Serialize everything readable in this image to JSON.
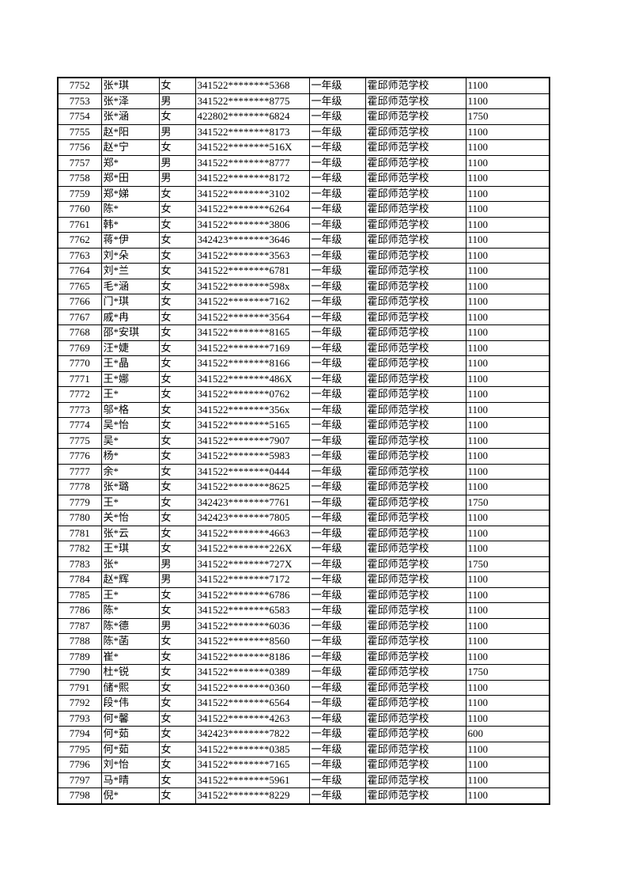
{
  "table": {
    "rows": [
      [
        "7752",
        "张*琪",
        "女",
        "341522********5368",
        "一年级",
        "霍邱师范学校",
        "1100"
      ],
      [
        "7753",
        "张*泽",
        "男",
        "341522********8775",
        "一年级",
        "霍邱师范学校",
        "1100"
      ],
      [
        "7754",
        "张*涵",
        "女",
        "422802********6824",
        "一年级",
        "霍邱师范学校",
        "1750"
      ],
      [
        "7755",
        "赵*阳",
        "男",
        "341522********8173",
        "一年级",
        "霍邱师范学校",
        "1100"
      ],
      [
        "7756",
        "赵*宁",
        "女",
        "341522********516X",
        "一年级",
        "霍邱师范学校",
        "1100"
      ],
      [
        "7757",
        "郑*",
        "男",
        "341522********8777",
        "一年级",
        "霍邱师范学校",
        "1100"
      ],
      [
        "7758",
        "郑*田",
        "男",
        "341522********8172",
        "一年级",
        "霍邱师范学校",
        "1100"
      ],
      [
        "7759",
        "郑*娣",
        "女",
        "341522********3102",
        "一年级",
        "霍邱师范学校",
        "1100"
      ],
      [
        "7760",
        "陈*",
        "女",
        "341522********6264",
        "一年级",
        "霍邱师范学校",
        "1100"
      ],
      [
        "7761",
        "韩*",
        "女",
        "341522********3806",
        "一年级",
        "霍邱师范学校",
        "1100"
      ],
      [
        "7762",
        "蒋*伊",
        "女",
        "342423********3646",
        "一年级",
        "霍邱师范学校",
        "1100"
      ],
      [
        "7763",
        "刘*朵",
        "女",
        "341522********3563",
        "一年级",
        "霍邱师范学校",
        "1100"
      ],
      [
        "7764",
        "刘*兰",
        "女",
        "341522********6781",
        "一年级",
        "霍邱师范学校",
        "1100"
      ],
      [
        "7765",
        "毛*涵",
        "女",
        "341522********598x",
        "一年级",
        "霍邱师范学校",
        "1100"
      ],
      [
        "7766",
        "门*琪",
        "女",
        "341522********7162",
        "一年级",
        "霍邱师范学校",
        "1100"
      ],
      [
        "7767",
        "戚*冉",
        "女",
        "341522********3564",
        "一年级",
        "霍邱师范学校",
        "1100"
      ],
      [
        "7768",
        "邵*安琪",
        "女",
        "341522********8165",
        "一年级",
        "霍邱师范学校",
        "1100"
      ],
      [
        "7769",
        "汪*婕",
        "女",
        "341522********7169",
        "一年级",
        "霍邱师范学校",
        "1100"
      ],
      [
        "7770",
        "王*晶",
        "女",
        "341522********8166",
        "一年级",
        "霍邱师范学校",
        "1100"
      ],
      [
        "7771",
        "王*娜",
        "女",
        "341522********486X",
        "一年级",
        "霍邱师范学校",
        "1100"
      ],
      [
        "7772",
        "王*",
        "女",
        "341522********0762",
        "一年级",
        "霍邱师范学校",
        "1100"
      ],
      [
        "7773",
        "邬*格",
        "女",
        "341522********356x",
        "一年级",
        "霍邱师范学校",
        "1100"
      ],
      [
        "7774",
        "吴*怡",
        "女",
        "341522********5165",
        "一年级",
        "霍邱师范学校",
        "1100"
      ],
      [
        "7775",
        "吴*",
        "女",
        "341522********7907",
        "一年级",
        "霍邱师范学校",
        "1100"
      ],
      [
        "7776",
        "杨*",
        "女",
        "341522********5983",
        "一年级",
        "霍邱师范学校",
        "1100"
      ],
      [
        "7777",
        "余*",
        "女",
        "341522********0444",
        "一年级",
        "霍邱师范学校",
        "1100"
      ],
      [
        "7778",
        "张*璐",
        "女",
        "341522********8625",
        "一年级",
        "霍邱师范学校",
        "1100"
      ],
      [
        "7779",
        "王*",
        "女",
        "342423********7761",
        "一年级",
        "霍邱师范学校",
        "1750"
      ],
      [
        "7780",
        "关*怡",
        "女",
        "342423********7805",
        "一年级",
        "霍邱师范学校",
        "1100"
      ],
      [
        "7781",
        "张*云",
        "女",
        "341522********4663",
        "一年级",
        "霍邱师范学校",
        "1100"
      ],
      [
        "7782",
        "王*琪",
        "女",
        "341522********226X",
        "一年级",
        "霍邱师范学校",
        "1100"
      ],
      [
        "7783",
        "张*",
        "男",
        "341522********727X",
        "一年级",
        "霍邱师范学校",
        "1750"
      ],
      [
        "7784",
        "赵*辉",
        "男",
        "341522********7172",
        "一年级",
        "霍邱师范学校",
        "1100"
      ],
      [
        "7785",
        "王*",
        "女",
        "341522********6786",
        "一年级",
        "霍邱师范学校",
        "1100"
      ],
      [
        "7786",
        "陈*",
        "女",
        "341522********6583",
        "一年级",
        "霍邱师范学校",
        "1100"
      ],
      [
        "7787",
        "陈*德",
        "男",
        "341522********6036",
        "一年级",
        "霍邱师范学校",
        "1100"
      ],
      [
        "7788",
        "陈*菡",
        "女",
        "341522********8560",
        "一年级",
        "霍邱师范学校",
        "1100"
      ],
      [
        "7789",
        "崔*",
        "女",
        "341522********8186",
        "一年级",
        "霍邱师范学校",
        "1100"
      ],
      [
        "7790",
        "杜*锐",
        "女",
        "341522********0389",
        "一年级",
        "霍邱师范学校",
        "1750"
      ],
      [
        "7791",
        "储*熙",
        "女",
        "341522********0360",
        "一年级",
        "霍邱师范学校",
        "1100"
      ],
      [
        "7792",
        "段*伟",
        "女",
        "341522********6564",
        "一年级",
        "霍邱师范学校",
        "1100"
      ],
      [
        "7793",
        "何*馨",
        "女",
        "341522********4263",
        "一年级",
        "霍邱师范学校",
        "1100"
      ],
      [
        "7794",
        "何*茹",
        "女",
        "342423********7822",
        "一年级",
        "霍邱师范学校",
        "600"
      ],
      [
        "7795",
        "何*茹",
        "女",
        "341522********0385",
        "一年级",
        "霍邱师范学校",
        "1100"
      ],
      [
        "7796",
        "刘*怡",
        "女",
        "341522********7165",
        "一年级",
        "霍邱师范学校",
        "1100"
      ],
      [
        "7797",
        "马*晴",
        "女",
        "341522********5961",
        "一年级",
        "霍邱师范学校",
        "1100"
      ],
      [
        "7798",
        "倪*",
        "女",
        "341522********8229",
        "一年级",
        "霍邱师范学校",
        "1100"
      ]
    ]
  }
}
